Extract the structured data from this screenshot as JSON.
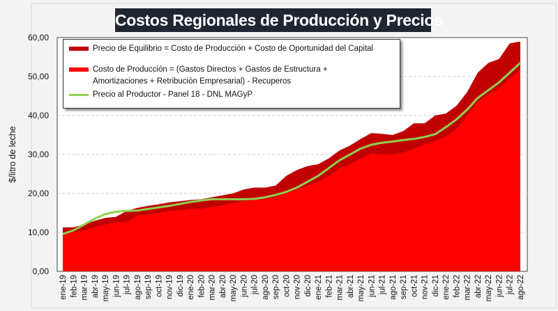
{
  "chart_data": {
    "type": "area",
    "title": "Costos Regionales de Producción y Precios",
    "ylabel": "$/litro de leche",
    "xlabel": "",
    "ylim": [
      0,
      60
    ],
    "yticks": [
      "0,00",
      "10,00",
      "20,00",
      "30,00",
      "40,00",
      "50,00",
      "60,00"
    ],
    "grid": true,
    "legend_placement": "top-left",
    "categories": [
      "ene-19",
      "feb-19",
      "mar-19",
      "abr-19",
      "may-19",
      "jun-19",
      "jul-19",
      "ago-19",
      "sep-19",
      "oct-19",
      "nov-19",
      "dic-19",
      "ene-20",
      "feb-20",
      "mar-20",
      "abr-20",
      "may-20",
      "jun-20",
      "jul-20",
      "ago-20",
      "sep-20",
      "oct-20",
      "nov-20",
      "dic-20",
      "ene-21",
      "feb-21",
      "mar-21",
      "abr-21",
      "may-21",
      "jun-21",
      "jul-21",
      "ago-21",
      "sep-21",
      "oct-21",
      "nov-21",
      "dic-21",
      "ene-22",
      "feb-22",
      "mar-22",
      "abr-22",
      "may-22",
      "jun-22",
      "jul-22",
      "ago-22"
    ],
    "series": [
      {
        "name": "Precio de Equilibrio = Costo de Producción + Costo de Oportunidad del Capital",
        "type": "area",
        "color": "#c00000",
        "values": [
          11.3,
          11.3,
          12,
          13,
          13.7,
          14,
          15.5,
          16.3,
          16.8,
          17.2,
          17.7,
          18,
          18.3,
          18.5,
          19,
          19.5,
          20,
          21,
          21.5,
          21.5,
          22,
          24.5,
          26,
          27,
          27.5,
          29,
          31,
          32.3,
          34,
          35.5,
          35.3,
          35,
          36,
          38,
          38,
          40,
          40.5,
          42.5,
          46,
          51,
          53.5,
          54.5,
          58.5,
          59
        ]
      },
      {
        "name": "Costo de Producción = (Gastos Directos + Gastos de Estructura + Amortizaciones + Retribución Empresarial) - Recuperos",
        "type": "area",
        "color": "#ff0000",
        "values": [
          9.7,
          10,
          10.5,
          11.3,
          12,
          12.7,
          12.5,
          14.3,
          14.7,
          15,
          15.5,
          15.7,
          16,
          16,
          16.5,
          17,
          17.5,
          18,
          18.3,
          18.5,
          19,
          20,
          21,
          22,
          23,
          24.5,
          26.5,
          27.5,
          29,
          30.2,
          30,
          30,
          30.5,
          31.5,
          32.5,
          33.5,
          34.5,
          36.5,
          40,
          43.5,
          45.5,
          47,
          49.5,
          51.8
        ]
      },
      {
        "name": "Precio al Productor - Panel 18 - DNL MAGyP",
        "type": "line",
        "color": "#92d050",
        "values": [
          9.6,
          10.5,
          12,
          13.5,
          14.7,
          15.3,
          15.5,
          15.6,
          16,
          16.4,
          16.8,
          17.3,
          17.8,
          18.2,
          18.5,
          18.5,
          18.5,
          18.5,
          18.6,
          19,
          19.6,
          20.4,
          21.5,
          23,
          24.5,
          26.5,
          28.5,
          30,
          31.5,
          32.5,
          33,
          33.3,
          33.7,
          34,
          34.5,
          35.2,
          37,
          39,
          41.5,
          44.5,
          46.5,
          48.5,
          51,
          53.5
        ]
      }
    ]
  },
  "legend": {
    "item1": "Precio de Equilibrio = Costo de Producción + Costo de Oportunidad del Capital",
    "item2_line1": "Costo de Producción = (Gastos Directos + Gastos de Estructura +",
    "item2_line2": "Amortizaciones + Retribución Empresarial) - Recuperos",
    "item3": "Precio al Productor - Panel 18 - DNL MAGyP"
  }
}
